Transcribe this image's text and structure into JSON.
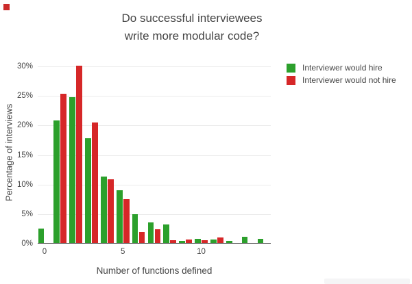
{
  "page": {
    "background": "#ffffff"
  },
  "chart_data": {
    "type": "bar",
    "title": "Do successful interviewees\nwrite more modular code?",
    "xlabel": "Number of functions defined",
    "ylabel": "Percentage of interviews",
    "categories": [
      0,
      1,
      2,
      3,
      4,
      5,
      6,
      7,
      8,
      9,
      10,
      11,
      12,
      13,
      14
    ],
    "series": [
      {
        "name": "Interviewer would hire",
        "color": "#2ca02c",
        "values": [
          2.4,
          20.7,
          24.7,
          17.7,
          11.2,
          8.9,
          4.9,
          3.5,
          3.1,
          0.3,
          0.75,
          0.55,
          0.3,
          1.0,
          0.7
        ]
      },
      {
        "name": "Interviewer would not hire",
        "color": "#d62728",
        "values": [
          0,
          25.2,
          30.0,
          20.4,
          10.8,
          7.4,
          1.9,
          2.3,
          0.5,
          0.55,
          0.5,
          0.9,
          0,
          0,
          0
        ]
      }
    ],
    "value_unit": "%",
    "ylim": [
      0,
      30
    ],
    "y_ticks": [
      0,
      5,
      10,
      15,
      20,
      25,
      30
    ],
    "y_tick_labels": [
      "0%",
      "5%",
      "10%",
      "15%",
      "20%",
      "25%",
      "30%"
    ],
    "x_tick_values": [
      0,
      5,
      10
    ],
    "x_tick_labels": [
      "0",
      "5",
      "10"
    ],
    "grid": true,
    "legend_position": "right-top"
  },
  "decorations": {
    "red_square_color": "#cc2b2b",
    "strip_color": "#f5f5f6",
    "grid_color": "#ebebeb",
    "axis_color": "#444444"
  }
}
